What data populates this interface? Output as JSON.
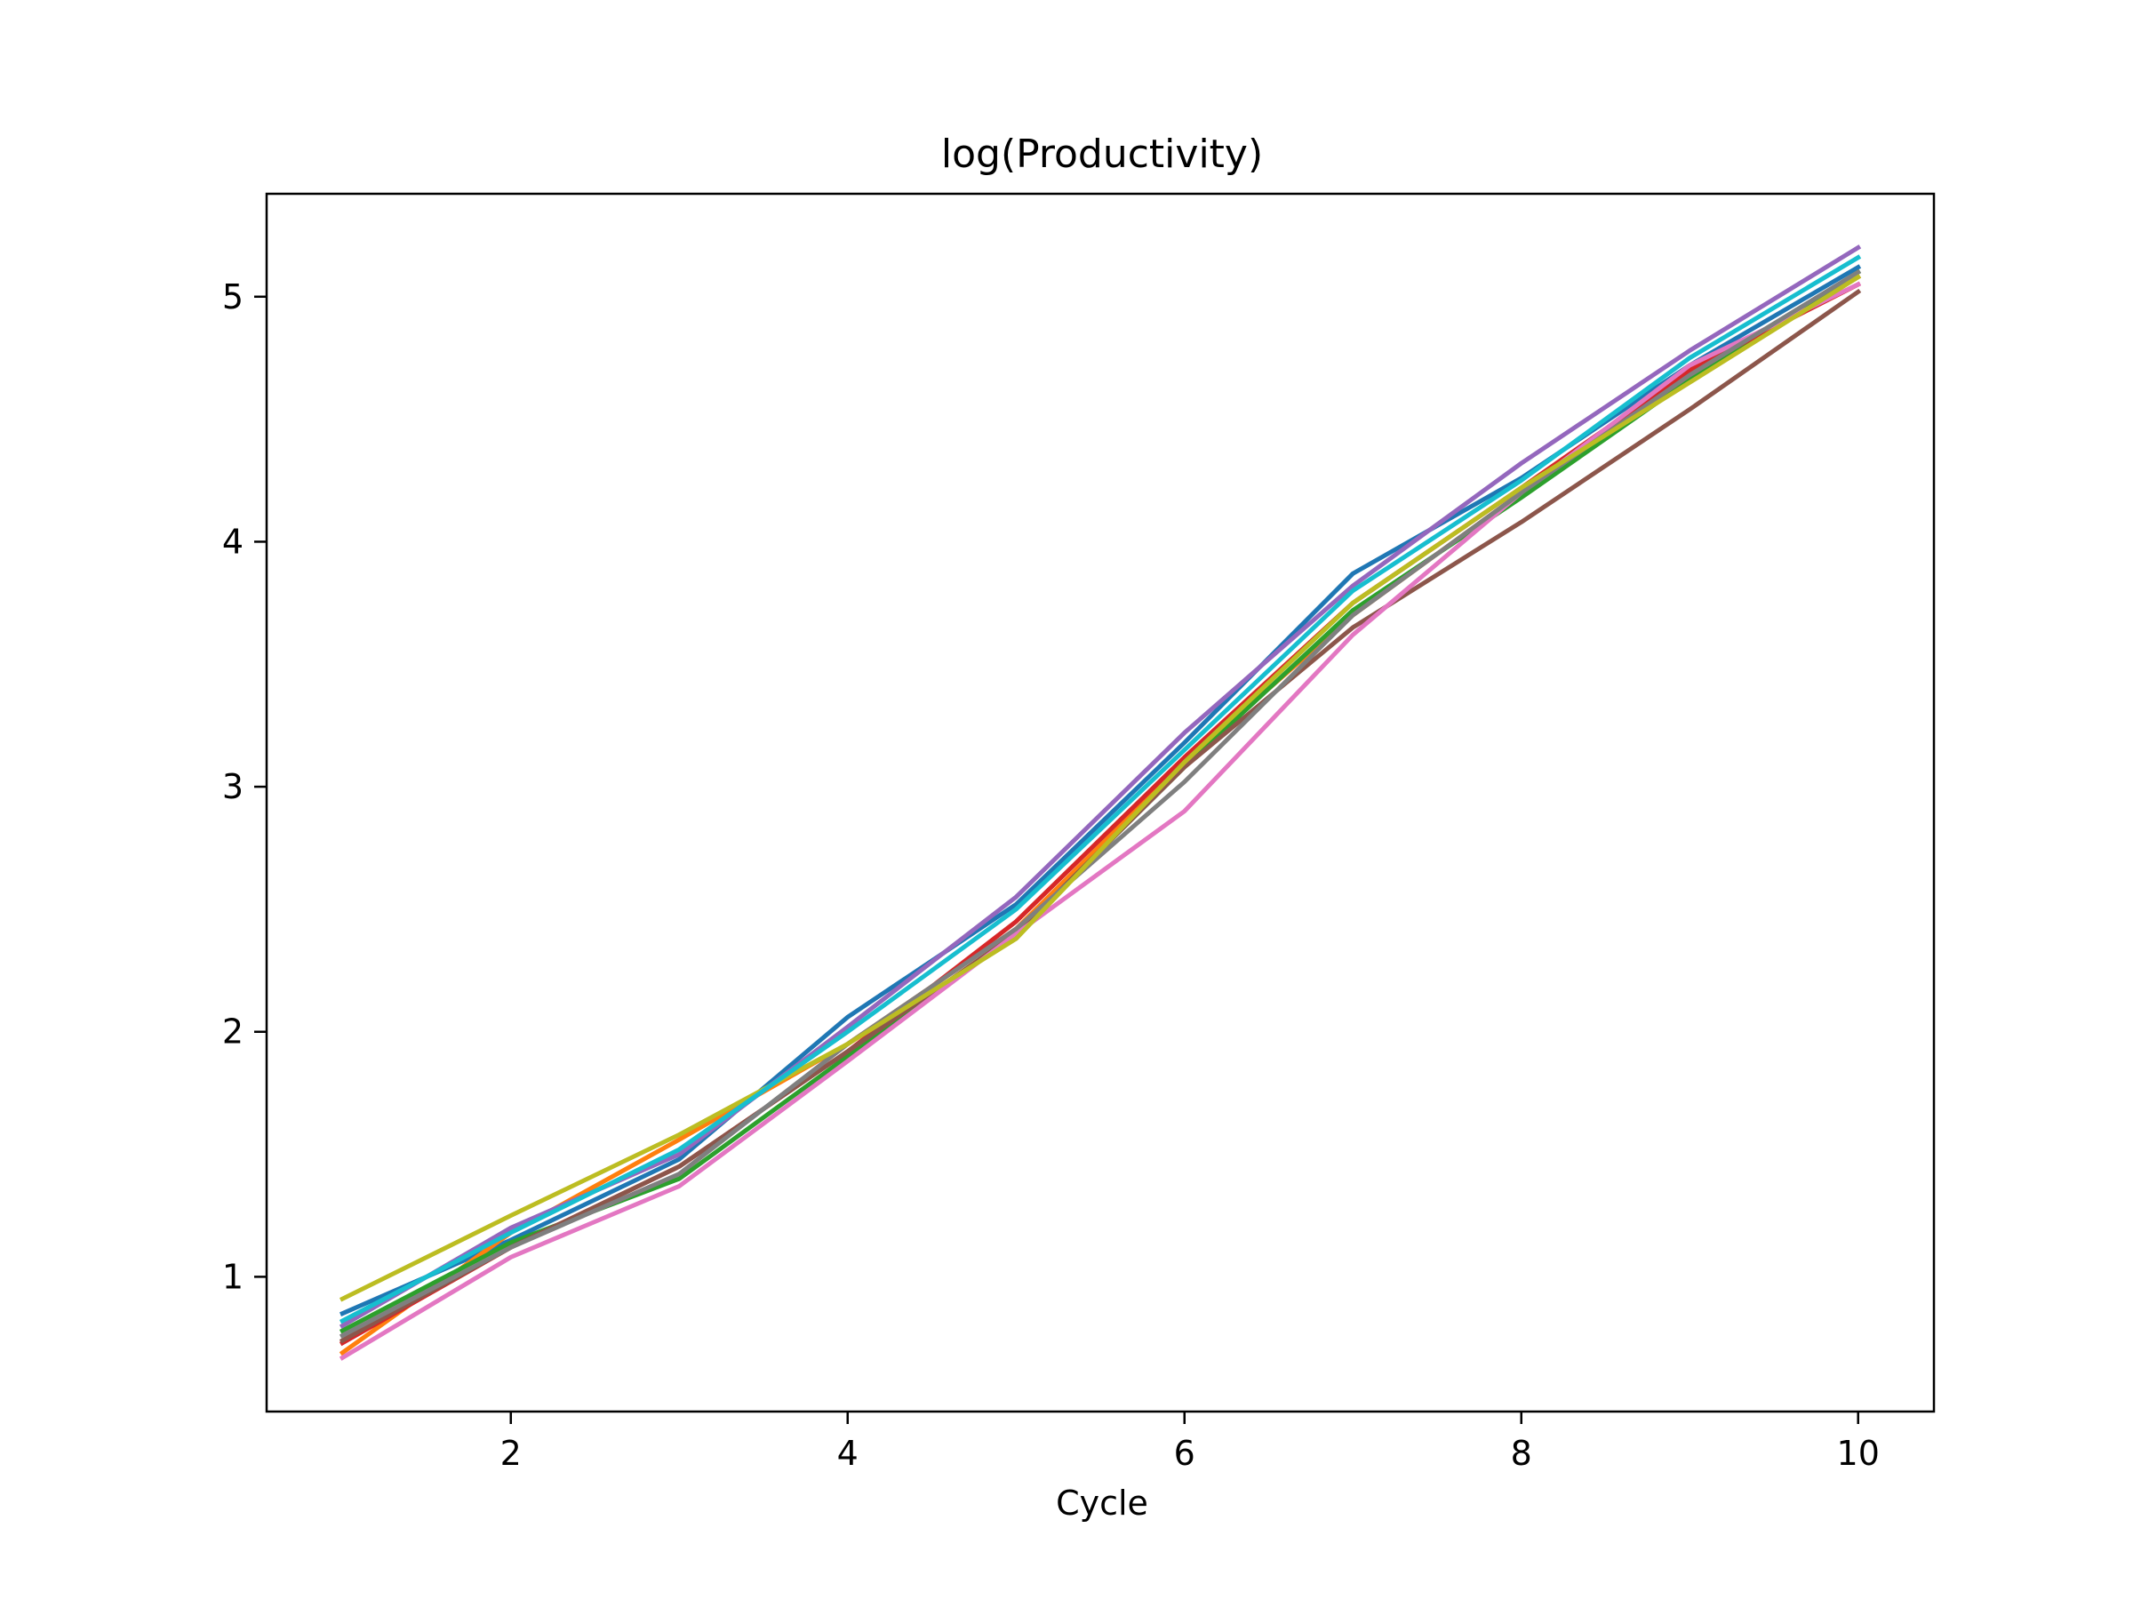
{
  "chart_data": {
    "type": "line",
    "title": "log(Productivity)",
    "xlabel": "Cycle",
    "ylabel": "",
    "xlim": [
      0.55,
      10.45
    ],
    "ylim": [
      0.45,
      5.42
    ],
    "xticks": [
      2,
      4,
      6,
      8,
      10
    ],
    "yticks": [
      1,
      2,
      3,
      4,
      5
    ],
    "xtick_labels": [
      "2",
      "4",
      "6",
      "8",
      "10"
    ],
    "ytick_labels": [
      "1",
      "2",
      "3",
      "4",
      "5"
    ],
    "grid": false,
    "legend": "none",
    "x": [
      1,
      2,
      3,
      4,
      5,
      6,
      7,
      8,
      9,
      10
    ],
    "series": [
      {
        "color": "#1f77b4",
        "values": [
          0.85,
          1.15,
          1.48,
          2.06,
          2.52,
          3.18,
          3.87,
          4.26,
          4.72,
          5.12
        ]
      },
      {
        "color": "#ff7f0e",
        "values": [
          0.69,
          1.18,
          1.56,
          1.95,
          2.42,
          3.1,
          3.7,
          4.2,
          4.68,
          5.08
        ]
      },
      {
        "color": "#2ca02c",
        "values": [
          0.78,
          1.14,
          1.4,
          1.9,
          2.4,
          3.08,
          3.72,
          4.18,
          4.66,
          5.1
        ]
      },
      {
        "color": "#d62728",
        "values": [
          0.73,
          1.12,
          1.45,
          1.92,
          2.45,
          3.12,
          3.75,
          4.22,
          4.7,
          5.05
        ]
      },
      {
        "color": "#9467bd",
        "values": [
          0.8,
          1.2,
          1.5,
          2.02,
          2.55,
          3.22,
          3.82,
          4.32,
          4.78,
          5.2
        ]
      },
      {
        "color": "#8c564b",
        "values": [
          0.74,
          1.12,
          1.45,
          1.92,
          2.4,
          3.08,
          3.65,
          4.08,
          4.54,
          5.02
        ]
      },
      {
        "color": "#e377c2",
        "values": [
          0.67,
          1.08,
          1.37,
          1.88,
          2.4,
          2.9,
          3.62,
          4.2,
          4.72,
          5.05
        ]
      },
      {
        "color": "#7f7f7f",
        "values": [
          0.76,
          1.12,
          1.42,
          1.95,
          2.42,
          3.02,
          3.7,
          4.2,
          4.68,
          5.1
        ]
      },
      {
        "color": "#bcbd22",
        "values": [
          0.91,
          1.25,
          1.58,
          1.95,
          2.38,
          3.1,
          3.75,
          4.22,
          4.65,
          5.08
        ]
      },
      {
        "color": "#17becf",
        "values": [
          0.82,
          1.18,
          1.52,
          2.0,
          2.5,
          3.15,
          3.8,
          4.25,
          4.75,
          5.16
        ]
      }
    ]
  }
}
